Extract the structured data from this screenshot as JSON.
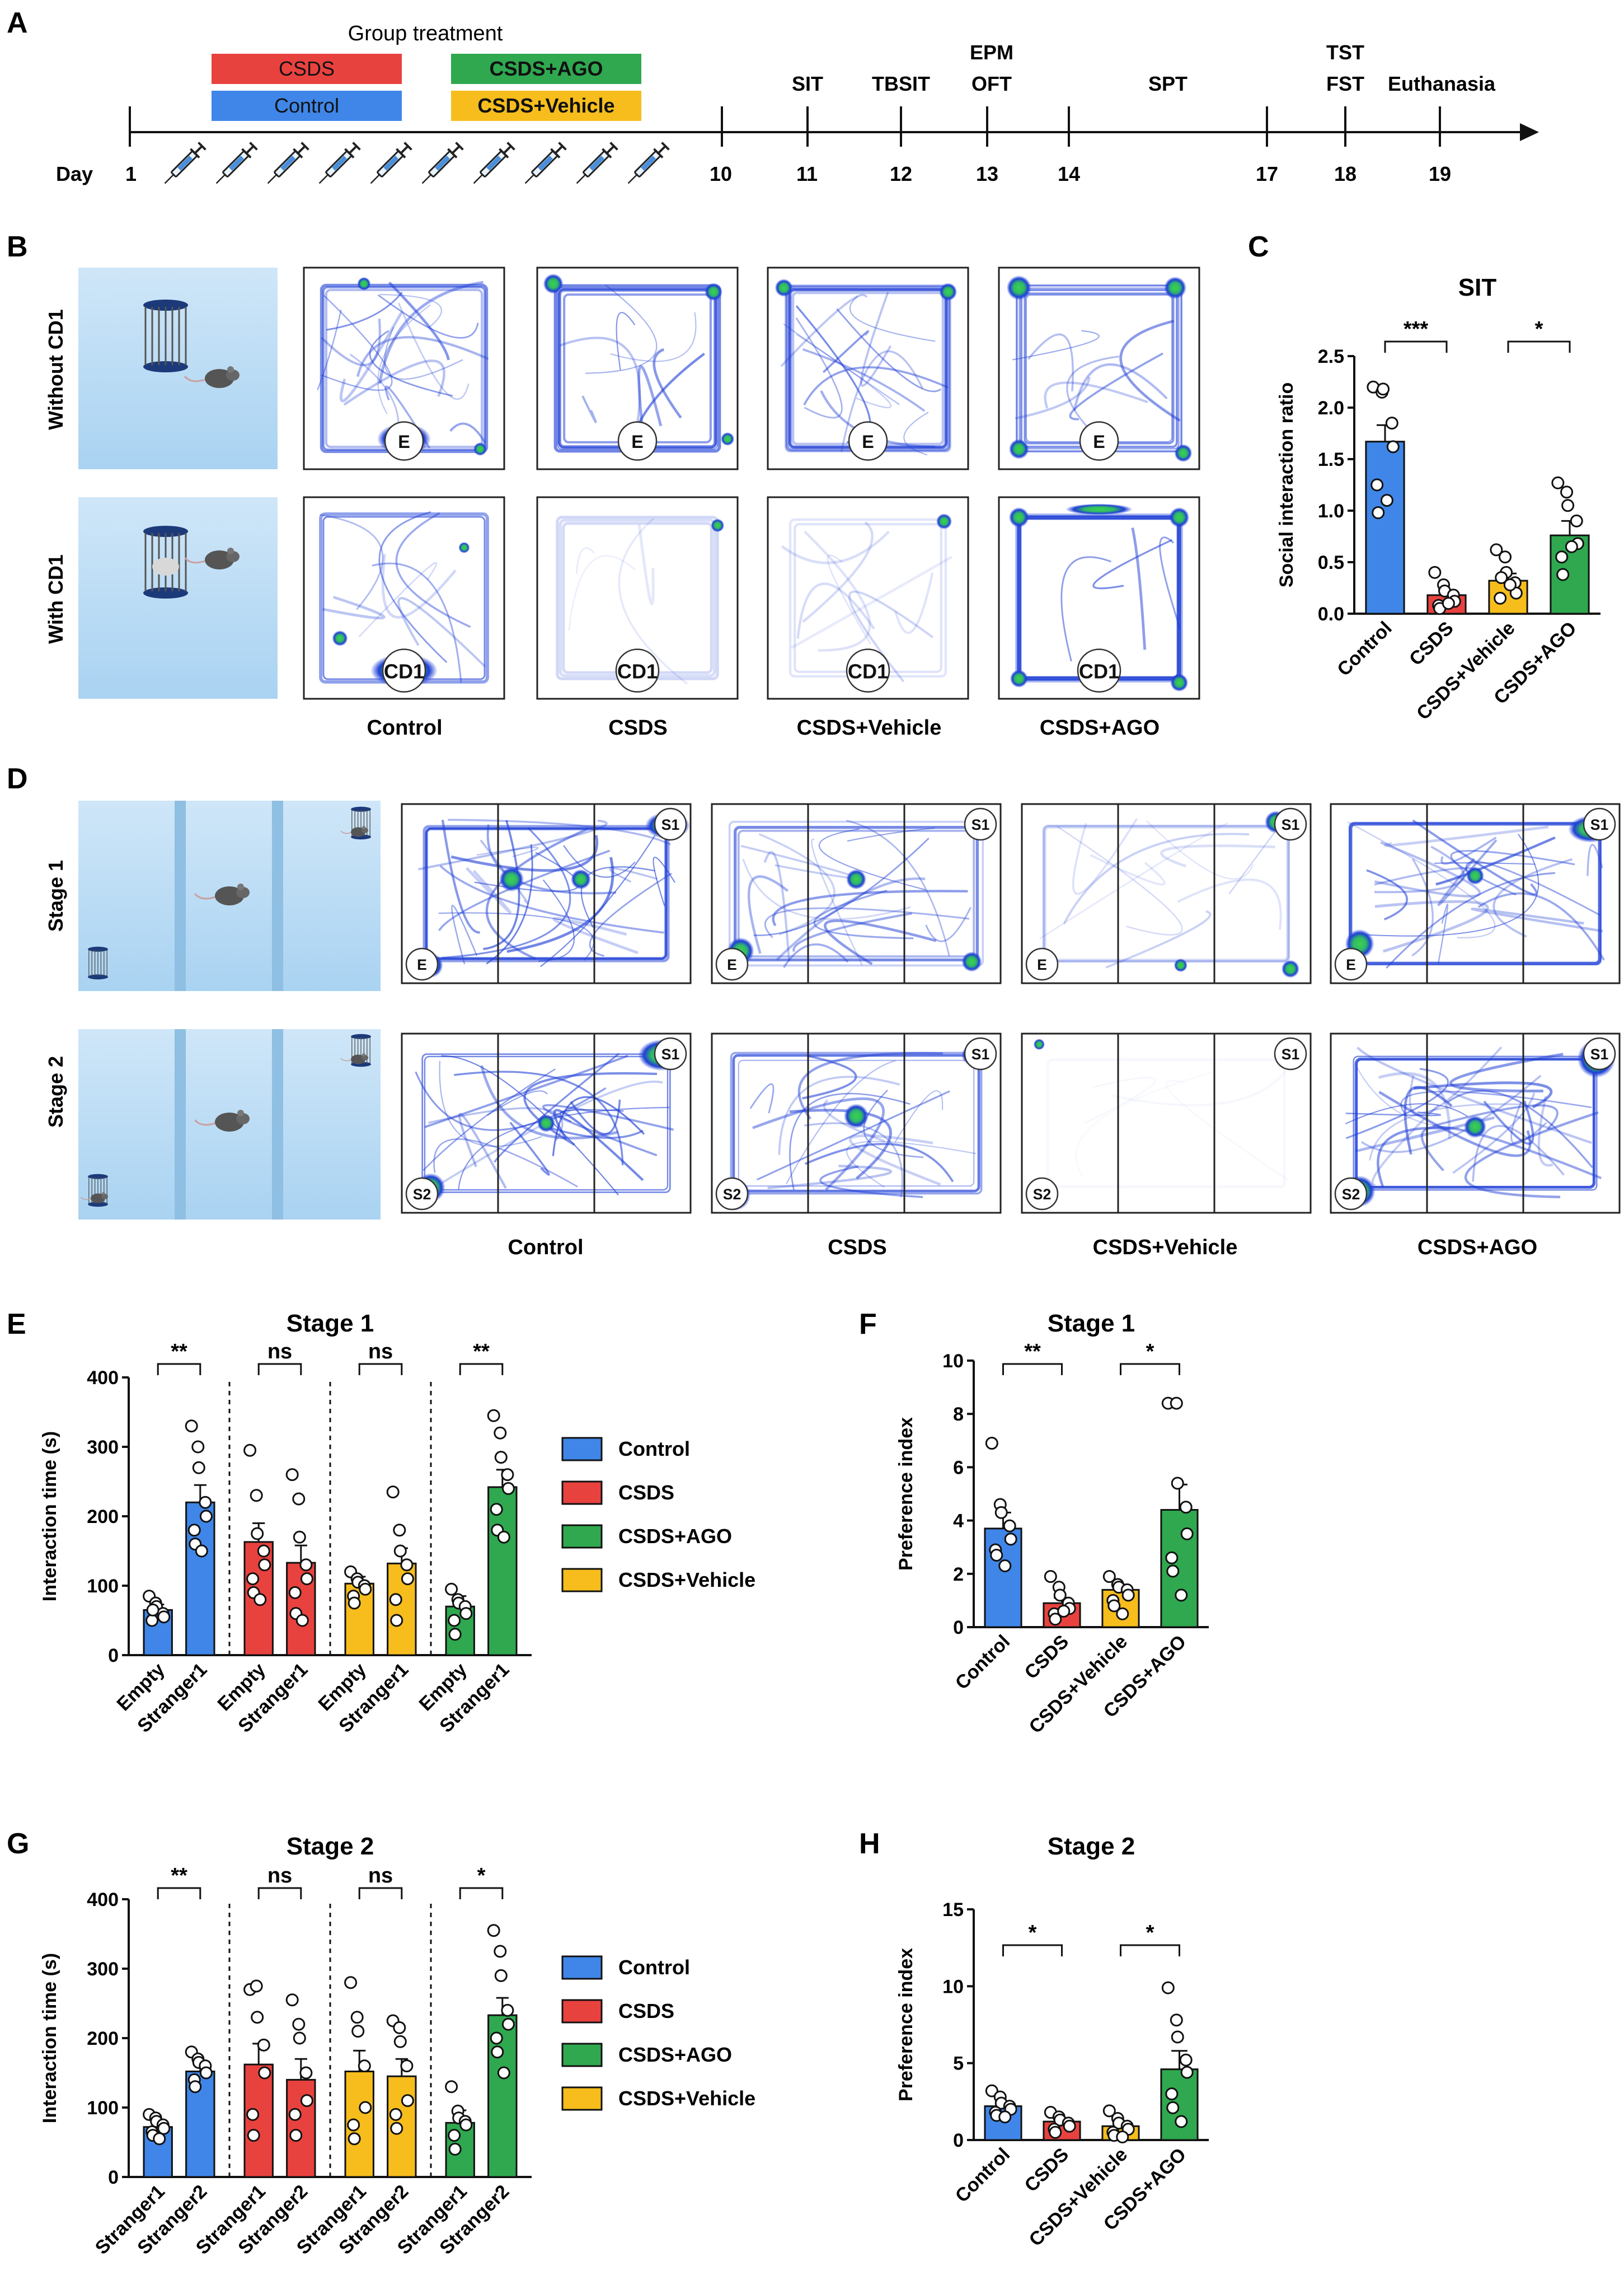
{
  "panel_labels": {
    "A": "A",
    "B": "B",
    "C": "C",
    "D": "D",
    "E": "E",
    "F": "F",
    "G": "G",
    "H": "H"
  },
  "timeline": {
    "group_treatment": "Group treatment",
    "boxes": [
      "CSDS",
      "Control",
      "CSDS+AGO",
      "CSDS+Vehicle"
    ],
    "day_label": "Day",
    "days": [
      "1",
      "10",
      "11",
      "12",
      "13",
      "14",
      "17",
      "18",
      "19"
    ],
    "events": {
      "sit": "SIT",
      "tbsit": "TBSIT",
      "epm": "EPM",
      "oft": "OFT",
      "spt": "SPT",
      "tst": "TST",
      "fst": "FST",
      "euthanasia": "Euthanasia"
    },
    "injection_count": 10
  },
  "panel_b": {
    "rows": [
      "Without CD1",
      "With CD1"
    ],
    "groups": [
      "Control",
      "CSDS",
      "CSDS+Vehicle",
      "CSDS+AGO"
    ],
    "zone_empty": "E",
    "zone_cd1": "CD1"
  },
  "panel_d": {
    "rows": [
      "Stage 1",
      "Stage 2"
    ],
    "groups": [
      "Control",
      "CSDS",
      "CSDS+Vehicle",
      "CSDS+AGO"
    ],
    "stage1_zones": {
      "left": "E",
      "right": "S1"
    },
    "stage2_zones": {
      "left": "S2",
      "right": "S1"
    }
  },
  "colors": {
    "control": "#3f86e8",
    "csds": "#e8423f",
    "ago": "#2fa84f",
    "vehicle": "#f6bd1c",
    "heat": "#1f3fd6"
  },
  "chart_data": [
    {
      "id": "C",
      "type": "bar",
      "title": "SIT",
      "ylabel": "Social interaction ratio",
      "ylim": [
        0,
        2.5
      ],
      "yticks": [
        "0.0",
        "0.5",
        "1.0",
        "1.5",
        "2.0",
        "2.5"
      ],
      "categories": [
        "Control",
        "CSDS",
        "CSDS+Vehicle",
        "CSDS+AGO"
      ],
      "values": [
        1.67,
        0.18,
        0.32,
        0.76
      ],
      "errors": [
        0.16,
        0.05,
        0.07,
        0.14
      ],
      "points": [
        [
          2.2,
          2.15,
          2.18,
          1.85,
          1.62,
          1.25,
          0.98,
          1.1
        ],
        [
          0.4,
          0.28,
          0.22,
          0.18,
          0.12,
          0.08,
          0.05,
          0.1
        ],
        [
          0.62,
          0.55,
          0.4,
          0.3,
          0.2,
          0.15,
          0.35,
          0.28
        ],
        [
          1.27,
          1.18,
          1.05,
          0.9,
          0.68,
          0.55,
          0.38,
          0.65
        ]
      ],
      "significance": [
        {
          "from": 0,
          "to": 1,
          "label": "***"
        },
        {
          "from": 2,
          "to": 3,
          "label": "*"
        }
      ]
    },
    {
      "id": "E",
      "type": "bar",
      "title": "Stage 1",
      "ylabel": "Interaction time (s)",
      "ylim": [
        0,
        400
      ],
      "yticks": [
        "0",
        "100",
        "200",
        "300",
        "400"
      ],
      "categories": [
        "Empty",
        "Stranger1",
        "Empty",
        "Stranger1",
        "Empty",
        "Stranger1",
        "Empty",
        "Stranger1"
      ],
      "groups": [
        "Control",
        "CSDS",
        "CSDS+Vehicle",
        "CSDS+AGO"
      ],
      "series_by_category": [
        "Control",
        "Control",
        "CSDS",
        "CSDS",
        "CSDS+Vehicle",
        "CSDS+Vehicle",
        "CSDS+AGO",
        "CSDS+AGO"
      ],
      "values": [
        65,
        220,
        163,
        133,
        103,
        132,
        70,
        242
      ],
      "errors": [
        8,
        25,
        27,
        25,
        10,
        22,
        15,
        25
      ],
      "points": [
        [
          85,
          75,
          70,
          60,
          55,
          50,
          65
        ],
        [
          330,
          300,
          270,
          220,
          200,
          180,
          160,
          150
        ],
        [
          295,
          230,
          175,
          150,
          130,
          110,
          90,
          80
        ],
        [
          260,
          225,
          170,
          130,
          110,
          90,
          60,
          50
        ],
        [
          120,
          110,
          105,
          100,
          95,
          85,
          75
        ],
        [
          235,
          180,
          150,
          130,
          110,
          80,
          50
        ],
        [
          95,
          80,
          75,
          70,
          60,
          50,
          30
        ],
        [
          345,
          320,
          285,
          260,
          240,
          210,
          180,
          170
        ]
      ],
      "significance": [
        {
          "from": 0,
          "to": 1,
          "label": "**"
        },
        {
          "from": 2,
          "to": 3,
          "label": "ns"
        },
        {
          "from": 4,
          "to": 5,
          "label": "ns"
        },
        {
          "from": 6,
          "to": 7,
          "label": "**"
        }
      ],
      "legend": [
        "Control",
        "CSDS",
        "CSDS+AGO",
        "CSDS+Vehicle"
      ]
    },
    {
      "id": "F",
      "type": "bar",
      "title": "Stage 1",
      "ylabel": "Preference index",
      "ylim": [
        0,
        10
      ],
      "yticks": [
        "0",
        "2",
        "4",
        "6",
        "8",
        "10"
      ],
      "categories": [
        "Control",
        "CSDS",
        "CSDS+Vehicle",
        "CSDS+AGO"
      ],
      "values": [
        3.7,
        0.9,
        1.4,
        4.4
      ],
      "errors": [
        0.6,
        0.2,
        0.2,
        0.95
      ],
      "points": [
        [
          6.9,
          4.6,
          4.3,
          3.8,
          3.3,
          2.9,
          2.7,
          2.3
        ],
        [
          1.9,
          1.5,
          1.2,
          0.9,
          0.7,
          0.5,
          0.3,
          0.6
        ],
        [
          1.9,
          1.6,
          1.5,
          1.4,
          1.2,
          1.0,
          0.8,
          0.5
        ],
        [
          8.4,
          8.4,
          5.4,
          4.5,
          3.5,
          2.6,
          2.1,
          1.2
        ]
      ],
      "significance": [
        {
          "from": 0,
          "to": 1,
          "label": "**"
        },
        {
          "from": 2,
          "to": 3,
          "label": "*"
        }
      ]
    },
    {
      "id": "G",
      "type": "bar",
      "title": "Stage 2",
      "ylabel": "Interaction time (s)",
      "ylim": [
        0,
        400
      ],
      "yticks": [
        "0",
        "100",
        "200",
        "300",
        "400"
      ],
      "categories": [
        "Stranger1",
        "Stranger2",
        "Stranger1",
        "Stranger2",
        "Stranger1",
        "Stranger2",
        "Stranger1",
        "Stranger2"
      ],
      "groups": [
        "Control",
        "CSDS",
        "CSDS+Vehicle",
        "CSDS+AGO"
      ],
      "series_by_category": [
        "Control",
        "Control",
        "CSDS",
        "CSDS",
        "CSDS+Vehicle",
        "CSDS+Vehicle",
        "CSDS+AGO",
        "CSDS+AGO"
      ],
      "values": [
        72,
        152,
        162,
        140,
        152,
        145,
        78,
        233
      ],
      "errors": [
        9,
        12,
        30,
        30,
        30,
        25,
        18,
        25
      ],
      "points": [
        [
          90,
          85,
          80,
          75,
          70,
          65,
          60,
          55
        ],
        [
          180,
          170,
          165,
          160,
          150,
          140,
          130
        ],
        [
          270,
          275,
          230,
          190,
          150,
          90,
          60
        ],
        [
          255,
          220,
          200,
          150,
          110,
          90,
          60
        ],
        [
          280,
          230,
          210,
          160,
          100,
          75,
          55
        ],
        [
          225,
          215,
          195,
          160,
          110,
          90,
          70
        ],
        [
          130,
          95,
          85,
          80,
          75,
          60,
          40
        ],
        [
          355,
          325,
          290,
          240,
          220,
          200,
          180,
          150
        ]
      ],
      "significance": [
        {
          "from": 0,
          "to": 1,
          "label": "**"
        },
        {
          "from": 2,
          "to": 3,
          "label": "ns"
        },
        {
          "from": 4,
          "to": 5,
          "label": "ns"
        },
        {
          "from": 6,
          "to": 7,
          "label": "*"
        }
      ],
      "legend": [
        "Control",
        "CSDS",
        "CSDS+AGO",
        "CSDS+Vehicle"
      ]
    },
    {
      "id": "H",
      "type": "bar",
      "title": "Stage 2",
      "ylabel": "Preference index",
      "ylim": [
        0,
        15
      ],
      "yticks": [
        "0",
        "5",
        "10",
        "15"
      ],
      "categories": [
        "Control",
        "CSDS",
        "CSDS+Vehicle",
        "CSDS+AGO"
      ],
      "values": [
        2.2,
        1.2,
        0.9,
        4.6
      ],
      "errors": [
        0.3,
        0.2,
        0.2,
        1.2
      ],
      "points": [
        [
          3.2,
          2.8,
          2.4,
          2.2,
          2.0,
          1.8,
          1.6,
          1.5
        ],
        [
          1.8,
          1.5,
          1.3,
          1.1,
          0.9,
          0.7,
          0.5
        ],
        [
          1.9,
          1.4,
          1.1,
          0.9,
          0.7,
          0.5,
          0.3,
          0.2
        ],
        [
          9.9,
          7.8,
          6.7,
          5.2,
          4.4,
          3.0,
          2.1,
          1.2
        ]
      ],
      "significance": [
        {
          "from": 0,
          "to": 1,
          "label": "*"
        },
        {
          "from": 2,
          "to": 3,
          "label": "*"
        }
      ]
    }
  ]
}
